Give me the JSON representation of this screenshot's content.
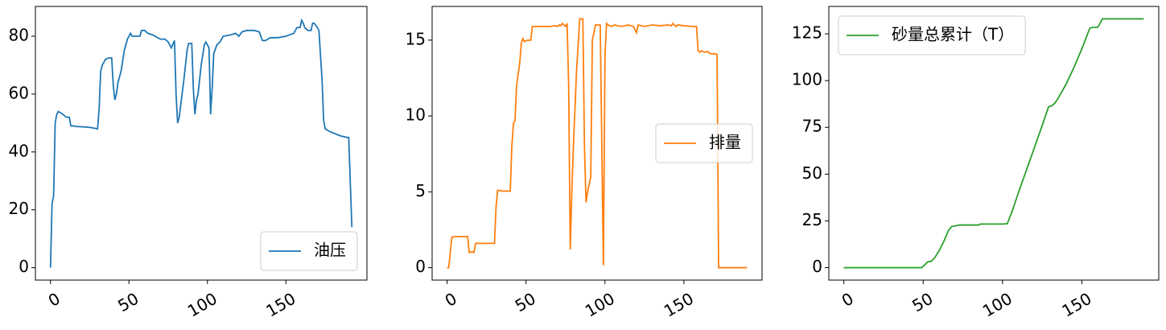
{
  "chart_data": [
    {
      "type": "line",
      "xlim": [
        -9.6,
        201.6
      ],
      "ylim": [
        -4.3,
        90.3
      ],
      "xticks": [
        0,
        50,
        100,
        150
      ],
      "yticks": [
        0,
        20,
        40,
        60,
        80
      ],
      "legend": "lower right",
      "x": [
        0,
        1,
        2,
        3,
        4,
        5,
        8,
        10,
        12,
        13,
        15,
        16,
        20,
        25,
        30,
        31,
        32,
        33,
        35,
        37,
        39,
        40,
        41,
        42,
        43,
        45,
        47,
        49,
        51,
        52,
        55,
        57,
        58,
        60,
        62,
        65,
        70,
        73,
        75,
        77,
        79,
        80,
        81,
        82,
        85,
        87,
        88,
        89,
        90,
        91,
        92,
        93,
        94,
        96,
        98,
        99,
        100,
        101,
        102,
        103,
        104,
        106,
        108,
        110,
        115,
        118,
        120,
        122,
        125,
        130,
        133,
        135,
        137,
        140,
        145,
        150,
        155,
        157,
        159,
        160,
        161,
        162,
        164,
        166,
        167,
        168,
        170,
        171,
        173,
        174,
        175,
        178,
        185,
        189,
        190,
        192
      ],
      "series": [
        {
          "name": "油压",
          "color": "#1f77b4",
          "values": [
            0,
            22,
            25,
            50,
            53,
            54,
            53,
            52,
            52,
            49,
            49,
            48.8,
            48.7,
            48.5,
            48,
            55,
            68,
            70,
            72,
            72.5,
            72.5,
            63,
            58,
            60,
            64,
            68,
            75,
            79,
            81,
            80,
            80,
            80,
            82,
            82,
            81,
            80.5,
            79,
            79,
            78,
            76,
            78.5,
            60,
            50,
            52,
            65,
            75,
            77.5,
            77.5,
            77.5,
            62,
            53,
            58,
            60,
            70,
            77,
            78,
            77,
            76,
            53,
            62,
            74,
            77,
            78,
            80,
            80.5,
            81,
            80,
            81.5,
            82,
            82,
            81.5,
            78.5,
            78.5,
            79.5,
            79.5,
            80,
            81,
            83,
            83,
            85.5,
            84.5,
            83,
            82,
            82,
            84.5,
            84.5,
            83,
            82,
            65,
            51,
            48,
            47,
            45.5,
            45,
            45,
            14
          ]
        }
      ]
    },
    {
      "type": "line",
      "xlim": [
        -9.5,
        199.5
      ],
      "ylim": [
        -0.82,
        17.22
      ],
      "xticks": [
        0,
        50,
        100,
        150
      ],
      "yticks": [
        0,
        5,
        10,
        15
      ],
      "legend": "center right",
      "x": [
        0,
        1,
        2,
        3,
        5,
        8,
        13,
        14,
        16,
        17,
        18,
        22,
        25,
        30,
        31,
        32,
        35,
        40,
        41,
        42,
        43,
        44,
        46,
        47,
        48,
        49,
        51,
        53,
        54,
        57,
        60,
        65,
        68,
        70,
        71,
        72,
        73,
        74,
        75,
        76,
        77,
        78,
        79,
        80,
        82,
        84,
        86,
        87,
        88,
        89,
        91,
        92,
        94,
        97,
        98,
        99,
        100,
        101,
        102,
        104,
        106,
        110,
        115,
        118,
        120,
        121,
        125,
        130,
        135,
        140,
        142,
        143,
        145,
        146,
        150,
        155,
        158,
        159,
        160,
        161,
        163,
        165,
        167,
        170,
        171,
        172,
        175,
        180,
        185,
        189,
        190
      ],
      "series": [
        {
          "name": "排量",
          "color": "#ff7f0e",
          "values": [
            0,
            0,
            1,
            2,
            2.05,
            2.05,
            2.05,
            1,
            1.05,
            1,
            1.6,
            1.6,
            1.6,
            1.6,
            4,
            5.1,
            5.05,
            5.05,
            8,
            9.5,
            9.7,
            12,
            13.5,
            14.8,
            15.1,
            14.9,
            15,
            15,
            15.9,
            15.9,
            15.9,
            15.9,
            15.95,
            15.9,
            16,
            15.95,
            16.1,
            16,
            15.9,
            16.1,
            12,
            1.2,
            5,
            8,
            13,
            16.4,
            16.4,
            8,
            4.3,
            5,
            6,
            15,
            16,
            16,
            8,
            0.15,
            14,
            16.1,
            16,
            15.9,
            16,
            15.9,
            16,
            15.9,
            15.5,
            16,
            15.9,
            16,
            15.95,
            16,
            15.95,
            16.1,
            15.9,
            16,
            15.95,
            15.9,
            15.9,
            14.3,
            14.2,
            14.3,
            14.2,
            14.25,
            14.1,
            14.1,
            14.05,
            0,
            0,
            0,
            0,
            0,
            0
          ]
        }
      ]
    },
    {
      "type": "line",
      "xlim": [
        -9.45,
        198.45
      ],
      "ylim": [
        -6.65,
        139.65
      ],
      "xticks": [
        0,
        50,
        100,
        150
      ],
      "yticks": [
        0,
        25,
        50,
        75,
        100,
        125
      ],
      "legend": "upper left",
      "x": [
        0,
        10,
        20,
        30,
        40,
        49,
        51,
        53,
        55,
        57,
        60,
        63,
        66,
        68,
        71,
        73,
        80,
        85,
        86,
        90,
        100,
        103,
        106,
        110,
        115,
        120,
        125,
        129,
        131,
        133,
        135,
        140,
        145,
        150,
        155,
        157,
        160,
        163,
        165,
        170,
        180,
        189
      ],
      "series": [
        {
          "name": "砂量总累计（T）",
          "color": "#2ca02c",
          "values": [
            0,
            0,
            0,
            0,
            0,
            0,
            1.5,
            3.2,
            3.3,
            5,
            9,
            14,
            20,
            22,
            22.5,
            22.8,
            22.8,
            22.8,
            23.3,
            23.3,
            23.3,
            23.5,
            30,
            40,
            52,
            64,
            76,
            86,
            86.5,
            88,
            90.5,
            98,
            107,
            117,
            128,
            128.5,
            128.5,
            133,
            133,
            133,
            133,
            133
          ]
        }
      ]
    }
  ]
}
